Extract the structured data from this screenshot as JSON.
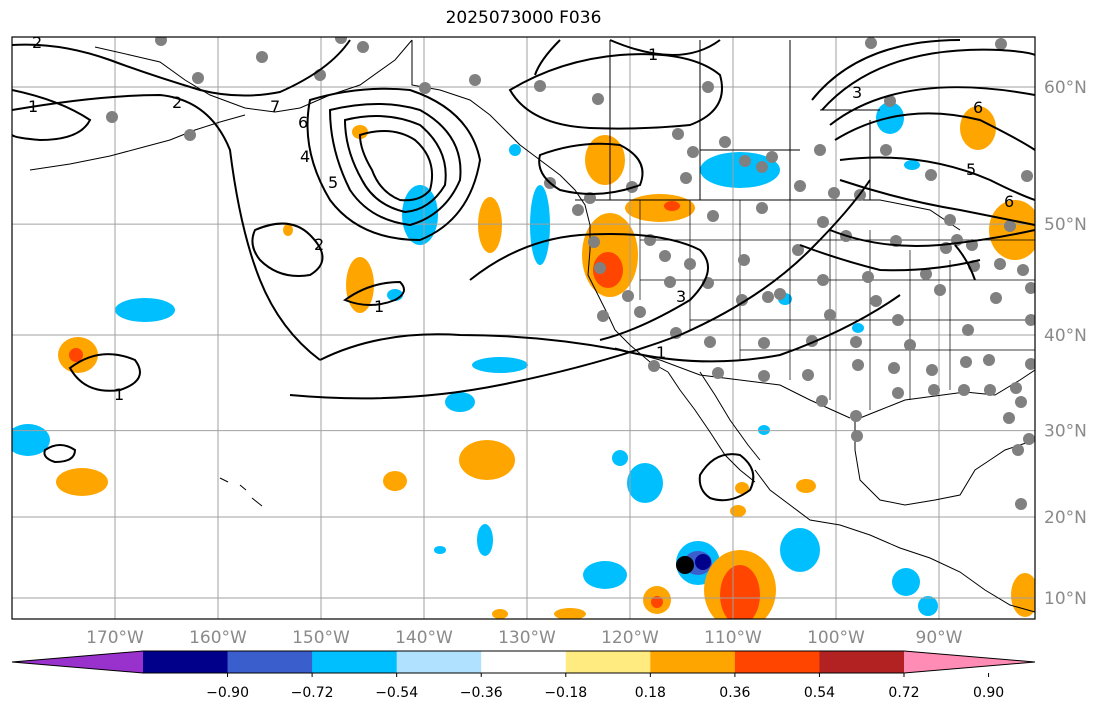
{
  "title": "2025073000 F036",
  "map": {
    "lon_range": [
      -180,
      -80
    ],
    "lat_range": [
      8,
      65
    ],
    "grid_lons": [
      -170,
      -160,
      -150,
      -140,
      -130,
      -120,
      -110,
      -100,
      -90
    ],
    "grid_lats": [
      10,
      20,
      30,
      40,
      50,
      60
    ],
    "lon_labels": [
      "170°W",
      "160°W",
      "150°W",
      "140°W",
      "130°W",
      "120°W",
      "110°W",
      "100°W",
      "90°W"
    ],
    "lat_labels": [
      "10°N",
      "20°N",
      "30°N",
      "40°N",
      "50°N",
      "60°N"
    ],
    "marker": {
      "label": "black-dot",
      "lon": -114,
      "lat": 13.2
    },
    "contour_labels": [
      "2",
      "1",
      "2",
      "6",
      "7",
      "4",
      "5",
      "2",
      "1",
      "1",
      "1",
      "3",
      "1",
      "3",
      "5",
      "6",
      "6"
    ],
    "colors": {
      "contour": "#000000",
      "station": "#808080",
      "coast": "#000000",
      "grid": "#a0a0a0"
    }
  },
  "colorbar": {
    "ticks": [
      "−0.90",
      "−0.72",
      "−0.54",
      "−0.36",
      "−0.18",
      "0.18",
      "0.36",
      "0.54",
      "0.72",
      "0.90"
    ],
    "colors": [
      "#9932cc",
      "#00008b",
      "#3a5fcd",
      "#00bfff",
      "#b0e2ff",
      "#ffffff",
      "#ffeb80",
      "#ffa500",
      "#ff4500",
      "#b22222",
      "#ff8cb4"
    ]
  }
}
